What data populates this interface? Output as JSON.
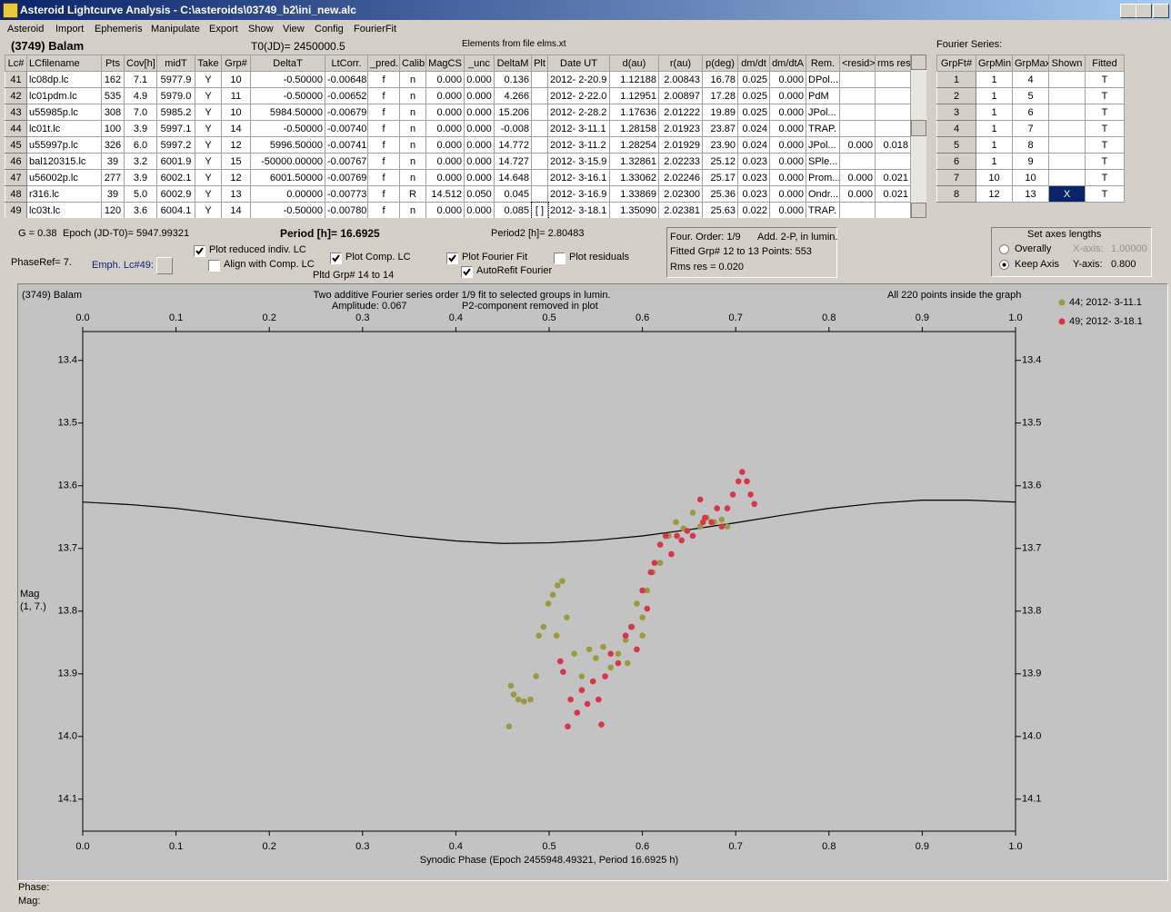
{
  "window": {
    "title": "Asteroid Lightcurve Analysis - C:\\asteroids\\03749_b2\\ini_new.alc"
  },
  "menu": [
    "Asteroid",
    "Import",
    "Ephemeris",
    "Manipulate",
    "Export",
    "Show",
    "View",
    "Config",
    "FourierFit"
  ],
  "header": {
    "asteroid": "(3749) Balam",
    "t0": "T0(JD)= 2450000.5",
    "elements": "Elements from file elms.xt",
    "fourier_label": "Fourier Series:"
  },
  "table": {
    "headers": [
      "Lc#",
      "LCfilename",
      "Pts",
      "Cov[h]",
      "midT",
      "Take",
      "Grp#",
      "DeltaT",
      "LtCorr.",
      "_pred.",
      "Calib.",
      "MagCS",
      "_unc",
      "DeltaM",
      "Plt",
      "Date UT",
      "d(au)",
      "r(au)",
      "p(deg)",
      "dm/dt",
      "dm/dtA",
      "Rem.",
      "<resid>",
      "rms res"
    ],
    "rows": [
      [
        "41",
        "lc08dp.lc",
        "162",
        "7.1",
        "5977.9",
        "Y",
        "10",
        "-0.50000",
        "-0.00648",
        "f",
        "n",
        "0.000",
        "0.000",
        "0.136",
        null,
        "2012- 2-20.9",
        "1.12188",
        "2.00843",
        "16.78",
        "0.025",
        "0.000",
        "DPol...",
        null,
        null
      ],
      [
        "42",
        "lc01pdm.lc",
        "535",
        "4.9",
        "5979.0",
        "Y",
        "11",
        "-0.50000",
        "-0.00652",
        "f",
        "n",
        "0.000",
        "0.000",
        "4.266",
        null,
        "2012- 2-22.0",
        "1.12951",
        "2.00897",
        "17.28",
        "0.025",
        "0.000",
        "PdM",
        null,
        null
      ],
      [
        "43",
        "u55985p.lc",
        "308",
        "7.0",
        "5985.2",
        "Y",
        "10",
        "5984.50000",
        "-0.00679",
        "f",
        "n",
        "0.000",
        "0.000",
        "15.206",
        null,
        "2012- 2-28.2",
        "1.17636",
        "2.01222",
        "19.89",
        "0.025",
        "0.000",
        "JPol...",
        null,
        null
      ],
      [
        "44",
        "lc01t.lc",
        "100",
        "3.9",
        "5997.1",
        "Y",
        "14",
        "-0.50000",
        "-0.00740",
        "f",
        "n",
        "0.000",
        "0.000",
        "-0.008",
        null,
        "2012- 3-11.1",
        "1.28158",
        "2.01923",
        "23.87",
        "0.024",
        "0.000",
        "TRAP.",
        null,
        null
      ],
      [
        "45",
        "u55997p.lc",
        "326",
        "6.0",
        "5997.2",
        "Y",
        "12",
        "5996.50000",
        "-0.00741",
        "f",
        "n",
        "0.000",
        "0.000",
        "14.772",
        null,
        "2012- 3-11.2",
        "1.28254",
        "2.01929",
        "23.90",
        "0.024",
        "0.000",
        "JPol...",
        "0.000",
        "0.018"
      ],
      [
        "46",
        "bal120315.lc",
        "39",
        "3.2",
        "6001.9",
        "Y",
        "15",
        "-50000.00000",
        "-0.00767",
        "f",
        "n",
        "0.000",
        "0.000",
        "14.727",
        null,
        "2012- 3-15.9",
        "1.32861",
        "2.02233",
        "25.12",
        "0.023",
        "0.000",
        "SPle...",
        null,
        null
      ],
      [
        "47",
        "u56002p.lc",
        "277",
        "3.9",
        "6002.1",
        "Y",
        "12",
        "6001.50000",
        "-0.00769",
        "f",
        "n",
        "0.000",
        "0.000",
        "14.648",
        null,
        "2012- 3-16.1",
        "1.33062",
        "2.02246",
        "25.17",
        "0.023",
        "0.000",
        "Prom...",
        "0.000",
        "0.021"
      ],
      [
        "48",
        "r316.lc",
        "39",
        "5.0",
        "6002.9",
        "Y",
        "13",
        "0.00000",
        "-0.00773",
        "f",
        "R",
        "14.512",
        "0.050",
        "0.045",
        null,
        "2012- 3-16.9",
        "1.33869",
        "2.02300",
        "25.36",
        "0.023",
        "0.000",
        "Ondr...",
        "0.000",
        "0.021"
      ],
      [
        "49",
        "lc03t.lc",
        "120",
        "3.6",
        "6004.1",
        "Y",
        "14",
        "-0.50000",
        "-0.00780",
        "f",
        "n",
        "0.000",
        "0.000",
        "0.085",
        "[ ]",
        "2012- 3-18.1",
        "1.35090",
        "2.02381",
        "25.63",
        "0.022",
        "0.000",
        "TRAP.",
        null,
        null
      ]
    ]
  },
  "fourier_table": {
    "headers": [
      "GrpFt#",
      "GrpMin",
      "GrpMax",
      "Shown",
      "Fitted"
    ],
    "rows": [
      [
        "1",
        "1",
        "4",
        null,
        "T"
      ],
      [
        "2",
        "1",
        "5",
        null,
        "T"
      ],
      [
        "3",
        "1",
        "6",
        null,
        "T"
      ],
      [
        "4",
        "1",
        "7",
        null,
        "T"
      ],
      [
        "5",
        "1",
        "8",
        null,
        "T"
      ],
      [
        "6",
        "1",
        "9",
        null,
        "T"
      ],
      [
        "7",
        "10",
        "10",
        null,
        "T"
      ],
      [
        "8",
        "12",
        "13",
        "X",
        "T"
      ]
    ]
  },
  "controls": {
    "g": "G = 0.38",
    "epoch": "Epoch (JD-T0)= 5947.99321",
    "period": "Period [h]= 16.6925",
    "period2": "Period2 [h]= 2.80483",
    "phaseref": "PhaseRef= 7.",
    "emph": "Emph. Lc#49:",
    "pltd_grp": "Pltd Grp#  14 to  14",
    "checkboxes": [
      {
        "label": "Plot reduced indiv. LC",
        "checked": true
      },
      {
        "label": "Align with Comp. LC",
        "checked": false
      },
      {
        "label": "Plot Comp. LC",
        "checked": true
      },
      {
        "label": "Plot Fourier Fit",
        "checked": true
      },
      {
        "label": "AutoRefit Fourier",
        "checked": true
      },
      {
        "label": "Plot residuals",
        "checked": false
      }
    ],
    "info": [
      "Four. Order:  1/9",
      "Add. 2-P, in lumin.",
      "Fitted Grp# 12 to 13 Points: 553",
      "Rms res     = 0.020"
    ],
    "axes": {
      "title": "Set axes lengths",
      "radios": [
        {
          "label": "Overally",
          "selected": false
        },
        {
          "label": "Keep Axis",
          "selected": true
        }
      ],
      "x_label": "X-axis:",
      "x_value": "1.00000",
      "y_label": "Y-axis:",
      "y_value": "0.800"
    }
  },
  "chart_data": {
    "type": "scatter",
    "object": "(3749) Balam",
    "title": "Two additive Fourier series order 1/9 fit to selected groups in lumin.",
    "amplitude": "Amplitude: 0.067",
    "note": "P2-component removed in plot",
    "points_note": "All 220 points inside the graph",
    "ylabel": [
      "Mag",
      "(1, 7.)"
    ],
    "xlabel": "Synodic Phase (Epoch 2455948.49321, Period 16.6925 h)",
    "xlim": [
      0,
      1
    ],
    "ylim": [
      14.151,
      13.354
    ],
    "xticks": [
      {
        "value": 0,
        "label": "0.0"
      },
      0.1,
      0.2,
      0.3,
      0.4,
      0.5,
      0.6,
      0.7,
      0.8,
      0.9,
      {
        "value": 1,
        "label": "1.0"
      }
    ],
    "yticks": [
      13.4,
      13.5,
      13.6,
      13.7,
      13.8,
      13.9,
      {
        "value": 14,
        "label": "14.0"
      },
      14.1
    ],
    "series": [
      {
        "name": "44; 2012- 3-11.1",
        "color": "#9c9a3e",
        "x": [
          0.457,
          0.459,
          0.462,
          0.467,
          0.473,
          0.48,
          0.486,
          0.489,
          0.494,
          0.499,
          0.504,
          0.509,
          0.514,
          0.519,
          0.527,
          0.535,
          0.543,
          0.55,
          0.558,
          0.566,
          0.574,
          0.582,
          0.589,
          0.594,
          0.6,
          0.605,
          0.611,
          0.619,
          0.628,
          0.636,
          0.644,
          0.654,
          0.662,
          0.669,
          0.677,
          0.685,
          0.691,
          0.6,
          0.584,
          0.508
        ],
        "values": [
          13.984,
          13.919,
          13.933,
          13.941,
          13.944,
          13.941,
          13.904,
          13.839,
          13.825,
          13.788,
          13.774,
          13.759,
          13.752,
          13.81,
          13.868,
          13.904,
          13.861,
          13.875,
          13.857,
          13.89,
          13.868,
          13.846,
          13.825,
          13.788,
          13.81,
          13.767,
          13.738,
          13.723,
          13.68,
          13.658,
          13.668,
          13.643,
          13.665,
          13.651,
          13.658,
          13.654,
          13.665,
          13.839,
          13.883,
          13.839
        ]
      },
      {
        "name": "49; 2012- 3-18.1",
        "color": "#d8344a",
        "x": [
          0.512,
          0.515,
          0.52,
          0.523,
          0.53,
          0.535,
          0.541,
          0.547,
          0.553,
          0.556,
          0.56,
          0.566,
          0.574,
          0.582,
          0.588,
          0.594,
          0.6,
          0.605,
          0.609,
          0.613,
          0.619,
          0.625,
          0.631,
          0.637,
          0.642,
          0.648,
          0.654,
          0.662,
          0.667,
          0.674,
          0.68,
          0.685,
          0.691,
          0.697,
          0.703,
          0.707,
          0.712,
          0.716,
          0.72,
          0.665
        ],
        "values": [
          13.88,
          13.897,
          13.984,
          13.941,
          13.962,
          13.926,
          13.948,
          13.912,
          13.941,
          13.981,
          13.904,
          13.868,
          13.883,
          13.839,
          13.825,
          13.861,
          13.767,
          13.796,
          13.738,
          13.723,
          13.694,
          13.68,
          13.709,
          13.68,
          13.687,
          13.672,
          13.68,
          13.622,
          13.651,
          13.658,
          13.636,
          13.665,
          13.636,
          13.614,
          13.593,
          13.578,
          13.593,
          13.614,
          13.629,
          13.658
        ]
      }
    ],
    "fit": {
      "color": "#000000",
      "x": [
        0,
        0.05,
        0.1,
        0.15,
        0.2,
        0.25,
        0.3,
        0.35,
        0.4,
        0.45,
        0.5,
        0.55,
        0.6,
        0.65,
        0.7,
        0.75,
        0.8,
        0.85,
        0.9,
        0.95,
        1
      ],
      "values": [
        13.626,
        13.63,
        13.636,
        13.645,
        13.654,
        13.663,
        13.672,
        13.681,
        13.688,
        13.692,
        13.691,
        13.687,
        13.68,
        13.67,
        13.659,
        13.647,
        13.636,
        13.628,
        13.623,
        13.623,
        13.626
      ]
    }
  },
  "status": [
    "Phase:",
    "Mag:"
  ]
}
